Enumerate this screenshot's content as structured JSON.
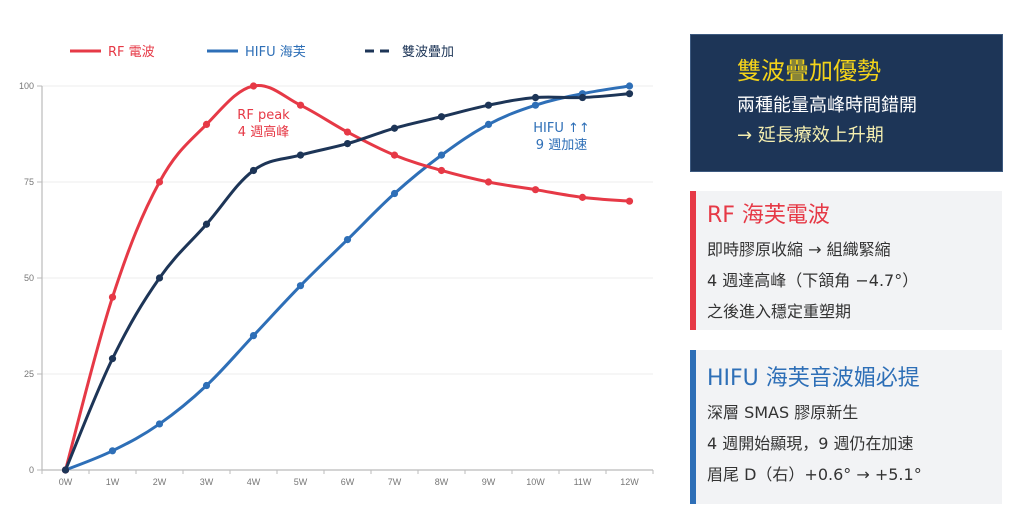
{
  "chart_data": {
    "type": "line",
    "title": "",
    "xlabel": "",
    "ylabel": "",
    "categories": [
      "0W",
      "1W",
      "2W",
      "3W",
      "4W",
      "5W",
      "6W",
      "7W",
      "8W",
      "9W",
      "10W",
      "11W",
      "12W"
    ],
    "ylim": [
      0,
      100
    ],
    "yticks": [
      0,
      25,
      50,
      75,
      100
    ],
    "grid": true,
    "legend_position": "top",
    "series": [
      {
        "name": "RF 電波",
        "color": "#e63946",
        "style": "solid",
        "values": [
          0,
          45,
          75,
          90,
          100,
          95,
          88,
          82,
          78,
          75,
          73,
          71,
          70
        ]
      },
      {
        "name": "HIFU 海芙",
        "color": "#2e6fb7",
        "style": "solid",
        "values": [
          0,
          5,
          12,
          22,
          35,
          48,
          60,
          72,
          82,
          90,
          95,
          98,
          100
        ]
      },
      {
        "name": "雙波疊加",
        "color": "#1d3557",
        "style": "dash",
        "values": [
          0,
          29,
          50,
          64,
          78,
          82,
          85,
          89,
          92,
          95,
          97,
          97,
          98
        ]
      }
    ],
    "annotations": [
      {
        "series": 0,
        "at": "4W",
        "lines": [
          "RF peak",
          "4 週高峰"
        ],
        "color": "#e63946"
      },
      {
        "series": 1,
        "at": "9W",
        "lines": [
          "HIFU ↑↑",
          "9 週加速"
        ],
        "color": "#2e6fb7"
      }
    ]
  },
  "panel": {
    "summary": {
      "title": "雙波疊加優勢",
      "line1": "兩種能量高峰時間錯開",
      "line2": "→ 延長療效上升期"
    },
    "rf": {
      "title": "RF 海芙電波",
      "lines": [
        "即時膠原收縮 → 組織緊縮",
        "4 週達高峰（下頷角 −4.7°）",
        "之後進入穩定重塑期"
      ],
      "accent": "#e63946"
    },
    "hifu": {
      "title": "HIFU 海芙音波媚必提",
      "lines": [
        "深層 SMAS 膠原新生",
        "4 週開始顯現，9 週仍在加速",
        "眉尾 D（右）+0.6° → +5.1°"
      ],
      "accent": "#2e6fb7"
    }
  }
}
